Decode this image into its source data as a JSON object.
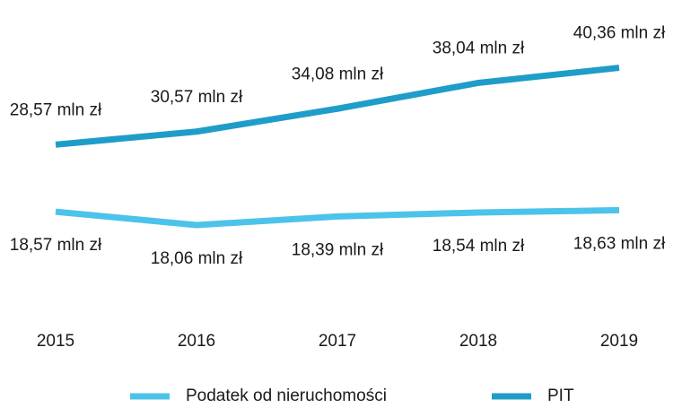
{
  "chart_data": {
    "type": "line",
    "categories": [
      "2015",
      "2016",
      "2017",
      "2018",
      "2019"
    ],
    "series": [
      {
        "name": "Podatek od nieruchomości",
        "color": "#4cc3ea",
        "axis": "y2",
        "values": [
          18.57,
          18.06,
          18.39,
          18.54,
          18.63
        ],
        "value_labels": [
          "18,57 mln zł",
          "18,06 mln zł",
          "18,39 mln zł",
          "18,54 mln zł",
          "18,63 mln zł"
        ]
      },
      {
        "name": "PIT",
        "color": "#1e9dc9",
        "values": [
          28.57,
          30.57,
          34.08,
          38.04,
          40.36
        ],
        "value_labels": [
          "28,57 mln zł",
          "30,57 mln zł",
          "34,08 mln zł",
          "38,04 mln zł",
          "40,36 mln zł"
        ]
      }
    ],
    "ylim": [
      4,
      48
    ],
    "y2lim": [
      15,
      26
    ]
  }
}
